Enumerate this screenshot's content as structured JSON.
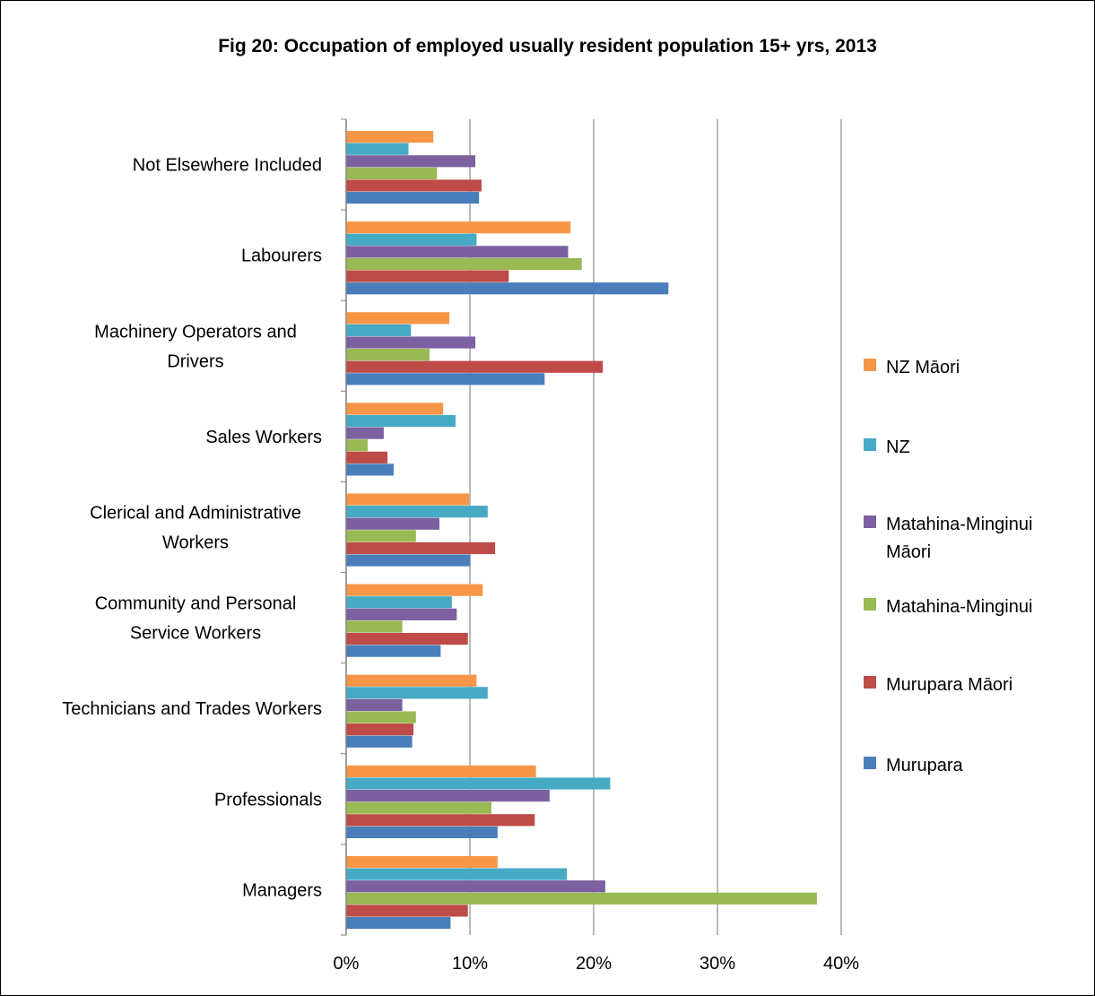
{
  "chart_data": {
    "type": "bar",
    "orientation": "horizontal",
    "title": "Fig 20: Occupation of employed usually resident population 15+ yrs, 2013",
    "xlabel": "",
    "ylabel": "",
    "xlim": [
      0,
      40
    ],
    "x_ticks": [
      "0%",
      "10%",
      "20%",
      "30%",
      "40%"
    ],
    "grid": true,
    "legend_position": "right",
    "categories": [
      [
        "Managers"
      ],
      [
        "Professionals"
      ],
      [
        "Technicians and Trades Workers"
      ],
      [
        "Community and Personal",
        "Service Workers"
      ],
      [
        "Clerical and Administrative",
        "Workers"
      ],
      [
        "Sales Workers"
      ],
      [
        "Machinery Operators and",
        "Drivers"
      ],
      [
        "Labourers"
      ],
      [
        "Not Elsewhere Included"
      ]
    ],
    "series": [
      {
        "name": "Murupara",
        "color": "#4A7EBB",
        "values": [
          8.4,
          12.2,
          5.3,
          7.6,
          10.0,
          3.8,
          16.0,
          26.0,
          10.7
        ]
      },
      {
        "name": "Murupara Māori",
        "color": "#BE4B48",
        "values": [
          9.8,
          15.2,
          5.4,
          9.8,
          12.0,
          3.3,
          20.7,
          13.1,
          10.9
        ]
      },
      {
        "name": "Matahina-Minginui",
        "color": "#98B954",
        "values": [
          38.0,
          11.7,
          5.6,
          4.5,
          5.6,
          1.7,
          6.7,
          19.0,
          7.3
        ]
      },
      {
        "name": "Matahina-Minginui Māori",
        "color": "#7D60A0",
        "values": [
          20.9,
          16.4,
          4.5,
          8.9,
          7.5,
          3.0,
          10.4,
          17.9,
          10.4
        ]
      },
      {
        "name": "NZ",
        "color": "#46AAC5",
        "values": [
          17.8,
          21.3,
          11.4,
          8.5,
          11.4,
          8.8,
          5.2,
          10.5,
          5.0
        ]
      },
      {
        "name": "NZ Māori",
        "color": "#F79646",
        "values": [
          12.2,
          15.3,
          10.5,
          11.0,
          9.9,
          7.8,
          8.3,
          18.1,
          7.0
        ]
      }
    ]
  }
}
